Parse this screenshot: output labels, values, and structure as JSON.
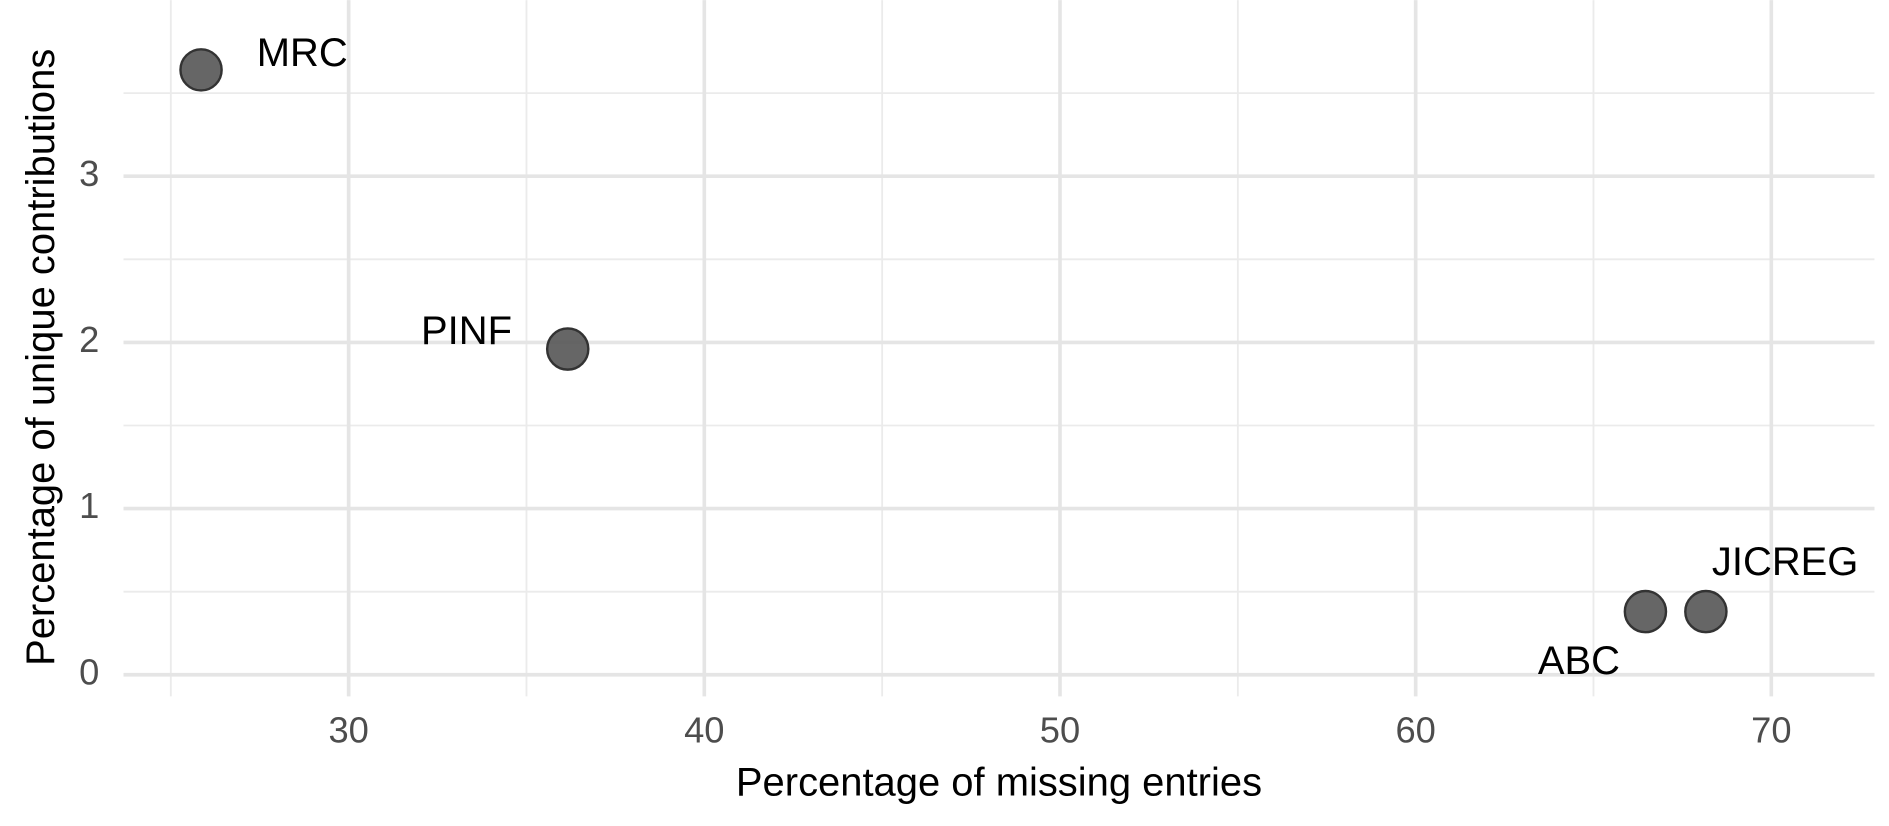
{
  "chart_data": {
    "type": "scatter",
    "x_label": "Percentage of missing entries",
    "y_label": "Percentage of unique contributions",
    "series": [
      {
        "color": "#555555",
        "labels": [
          "MRC",
          "PINF",
          "ABC",
          "JICREG"
        ],
        "x": [
          25.85,
          36.16,
          66.46,
          68.16
        ],
        "values": [
          3.64,
          1.96,
          0.38,
          0.38
        ]
      }
    ],
    "xlim": [
      23.67,
      72.9
    ],
    "ylim": [
      -0.13,
      4.06
    ],
    "xticks": [
      30,
      40,
      50,
      60,
      70
    ],
    "yticks": [
      0,
      1,
      2,
      3
    ],
    "grid": true
  }
}
